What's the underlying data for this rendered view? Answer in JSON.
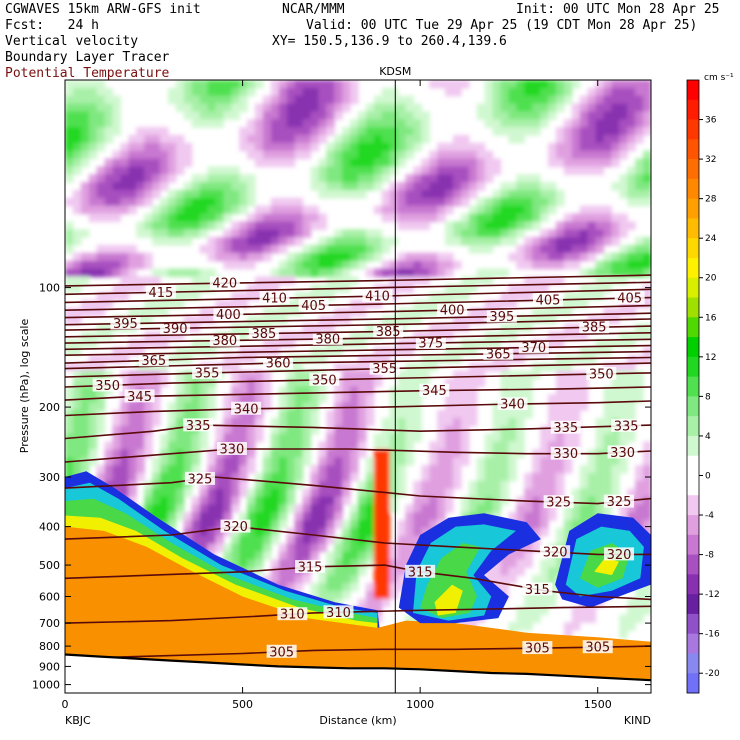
{
  "header": {
    "model": "CGWAVES 15km ARW-GFS init",
    "fcst": "Fcst:   24 h",
    "field1": "Vertical velocity",
    "field2": "Boundary Layer Tracer",
    "field3": "Potential Temperature",
    "org": "NCAR/MMM",
    "init": "Init: 00 UTC Mon 28 Apr 25",
    "valid": "Valid: 00 UTC Tue 29 Apr 25 (19 CDT Mon 28 Apr 25)",
    "xy": "XY= 150.5,136.9 to 260.4,139.6"
  },
  "colors": {
    "theta": "#5a0a0a",
    "tracer_outer": "#1a30e0",
    "tracer_mid": "#18c8d8",
    "tracer_green": "#48d848",
    "tracer_yellow": "#f0f000",
    "tracer_orange": "#f89000",
    "terrain": "#000000"
  },
  "chart_data": {
    "type": "cross-section",
    "xlabel": "Distance (km)",
    "ylabel": "Pressure (hPa), log scale",
    "xlim": [
      0,
      1650
    ],
    "ylim_hpa": [
      1050,
      30
    ],
    "x_ticks": [
      0,
      500,
      1000,
      1500
    ],
    "y_ticks": [
      100,
      200,
      300,
      400,
      500,
      600,
      700,
      800,
      900,
      1000
    ],
    "left_station": "KBJC",
    "right_station": "KIND",
    "marker_station": "KDSM",
    "marker_distance_km": 930,
    "colorbar": {
      "units": "cm s⁻¹",
      "labels": [
        "36",
        "32",
        "28",
        "24",
        "20",
        "16",
        "12",
        "8",
        "4",
        "0",
        "-4",
        "-8",
        "-12",
        "-16",
        "-20"
      ],
      "label_values": [
        36,
        32,
        28,
        24,
        20,
        16,
        12,
        8,
        4,
        0,
        -4,
        -8,
        -12,
        -16,
        -20
      ],
      "bins": [
        {
          "lo": 38,
          "hi": 40,
          "color": "#ff0000"
        },
        {
          "lo": 36,
          "hi": 38,
          "color": "#ff1c00"
        },
        {
          "lo": 34,
          "hi": 36,
          "color": "#ff3800"
        },
        {
          "lo": 32,
          "hi": 34,
          "color": "#ff5400"
        },
        {
          "lo": 30,
          "hi": 32,
          "color": "#ff6e00"
        },
        {
          "lo": 28,
          "hi": 30,
          "color": "#ff8800"
        },
        {
          "lo": 26,
          "hi": 28,
          "color": "#ffa000"
        },
        {
          "lo": 24,
          "hi": 26,
          "color": "#ffbc00"
        },
        {
          "lo": 22,
          "hi": 24,
          "color": "#ffd800"
        },
        {
          "lo": 20,
          "hi": 22,
          "color": "#fff000"
        },
        {
          "lo": 18,
          "hi": 20,
          "color": "#d8f000"
        },
        {
          "lo": 16,
          "hi": 18,
          "color": "#a0e000"
        },
        {
          "lo": 14,
          "hi": 16,
          "color": "#50d800"
        },
        {
          "lo": 12,
          "hi": 14,
          "color": "#00d000"
        },
        {
          "lo": 10,
          "hi": 12,
          "color": "#20d820"
        },
        {
          "lo": 8,
          "hi": 10,
          "color": "#50e050"
        },
        {
          "lo": 6,
          "hi": 8,
          "color": "#80e880"
        },
        {
          "lo": 4,
          "hi": 6,
          "color": "#a8f0a8"
        },
        {
          "lo": 2,
          "hi": 4,
          "color": "#d0f8d0"
        },
        {
          "lo": 0,
          "hi": 2,
          "color": "#ffffff"
        },
        {
          "lo": -2,
          "hi": 0,
          "color": "#ffffff"
        },
        {
          "lo": -4,
          "hi": -2,
          "color": "#f0c8f0"
        },
        {
          "lo": -6,
          "hi": -4,
          "color": "#e0a0e0"
        },
        {
          "lo": -8,
          "hi": -6,
          "color": "#c878d0"
        },
        {
          "lo": -10,
          "hi": -8,
          "color": "#a850c0"
        },
        {
          "lo": -12,
          "hi": -10,
          "color": "#8830b0"
        },
        {
          "lo": -14,
          "hi": -12,
          "color": "#6820a0"
        },
        {
          "lo": -16,
          "hi": -14,
          "color": "#9050c8"
        },
        {
          "lo": -18,
          "hi": -16,
          "color": "#a878e0"
        },
        {
          "lo": -20,
          "hi": -18,
          "color": "#8888f0"
        },
        {
          "lo": -22,
          "hi": -20,
          "color": "#7070f8"
        }
      ]
    },
    "theta_contours": [
      {
        "value": 305,
        "points": [
          [
            0,
            860
          ],
          [
            200,
            850
          ],
          [
            500,
            835
          ],
          [
            700,
            820
          ],
          [
            900,
            815
          ],
          [
            1100,
            815
          ],
          [
            1300,
            810
          ],
          [
            1500,
            805
          ],
          [
            1650,
            800
          ]
        ],
        "label_at": [
          [
            610,
            830
          ],
          [
            1330,
            815
          ],
          [
            1500,
            805
          ]
        ]
      },
      {
        "value": 310,
        "points": [
          [
            0,
            700
          ],
          [
            300,
            690
          ],
          [
            550,
            672
          ],
          [
            700,
            660
          ],
          [
            850,
            655
          ],
          [
            1000,
            650
          ],
          [
            1200,
            645
          ],
          [
            1400,
            640
          ],
          [
            1650,
            635
          ]
        ],
        "label_at": [
          [
            640,
            670
          ],
          [
            770,
            660
          ]
        ]
      },
      {
        "value": 315,
        "points": [
          [
            0,
            540
          ],
          [
            250,
            530
          ],
          [
            500,
            520
          ],
          [
            700,
            505
          ],
          [
            900,
            500
          ],
          [
            1000,
            520
          ],
          [
            1150,
            540
          ],
          [
            1350,
            580
          ],
          [
            1500,
            600
          ],
          [
            1650,
            610
          ]
        ],
        "label_at": [
          [
            690,
            505
          ],
          [
            1000,
            520
          ],
          [
            1330,
            580
          ]
        ]
      },
      {
        "value": 320,
        "points": [
          [
            0,
            430
          ],
          [
            300,
            420
          ],
          [
            480,
            400
          ],
          [
            700,
            420
          ],
          [
            900,
            440
          ],
          [
            1100,
            450
          ],
          [
            1300,
            460
          ],
          [
            1500,
            470
          ],
          [
            1650,
            470
          ]
        ],
        "label_at": [
          [
            480,
            400
          ],
          [
            1380,
            460
          ],
          [
            1560,
            460
          ]
        ]
      },
      {
        "value": 325,
        "points": [
          [
            0,
            320
          ],
          [
            300,
            310
          ],
          [
            420,
            300
          ],
          [
            700,
            315
          ],
          [
            1000,
            335
          ],
          [
            1300,
            345
          ],
          [
            1500,
            350
          ],
          [
            1650,
            340
          ]
        ],
        "label_at": [
          [
            380,
            300
          ],
          [
            1390,
            345
          ],
          [
            1560,
            335
          ]
        ]
      },
      {
        "value": 330,
        "points": [
          [
            0,
            275
          ],
          [
            300,
            262
          ],
          [
            470,
            255
          ],
          [
            800,
            255
          ],
          [
            1100,
            260
          ],
          [
            1300,
            262
          ],
          [
            1500,
            262
          ],
          [
            1650,
            258
          ]
        ],
        "label_at": [
          [
            470,
            255
          ],
          [
            1410,
            262
          ],
          [
            1570,
            258
          ]
        ]
      },
      {
        "value": 335,
        "points": [
          [
            0,
            240
          ],
          [
            250,
            230
          ],
          [
            380,
            222
          ],
          [
            700,
            225
          ],
          [
            1000,
            230
          ],
          [
            1300,
            227
          ],
          [
            1650,
            222
          ]
        ],
        "label_at": [
          [
            375,
            222
          ],
          [
            1410,
            225
          ],
          [
            1580,
            222
          ]
        ]
      },
      {
        "value": 340,
        "points": [
          [
            0,
            210
          ],
          [
            250,
            205
          ],
          [
            500,
            202
          ],
          [
            900,
            200
          ],
          [
            1200,
            197
          ],
          [
            1500,
            195
          ],
          [
            1650,
            193
          ]
        ],
        "label_at": [
          [
            510,
            202
          ],
          [
            1260,
            198
          ]
        ]
      },
      {
        "value": 345,
        "points": [
          [
            0,
            192
          ],
          [
            200,
            188
          ],
          [
            600,
            185
          ],
          [
            1000,
            182
          ],
          [
            1400,
            180
          ],
          [
            1650,
            178
          ]
        ],
        "label_at": [
          [
            210,
            188
          ],
          [
            1040,
            182
          ]
        ]
      },
      {
        "value": 350,
        "points": [
          [
            0,
            178
          ],
          [
            300,
            174
          ],
          [
            700,
            171
          ],
          [
            1100,
            168
          ],
          [
            1650,
            164
          ]
        ],
        "label_at": [
          [
            120,
            178
          ],
          [
            730,
            171
          ],
          [
            1510,
            165
          ]
        ]
      },
      {
        "value": 355,
        "points": [
          [
            0,
            168
          ],
          [
            400,
            164
          ],
          [
            900,
            160
          ],
          [
            1650,
            155
          ]
        ],
        "label_at": [
          [
            400,
            164
          ],
          [
            900,
            160
          ]
        ]
      },
      {
        "value": 360,
        "points": [
          [
            0,
            160
          ],
          [
            600,
            155
          ],
          [
            1650,
            150
          ]
        ],
        "label_at": [
          [
            600,
            156
          ]
        ]
      },
      {
        "value": 365,
        "points": [
          [
            0,
            155
          ],
          [
            500,
            150
          ],
          [
            1650,
            145
          ]
        ],
        "label_at": [
          [
            250,
            153
          ],
          [
            1220,
            147
          ]
        ]
      },
      {
        "value": 370,
        "points": [
          [
            0,
            148
          ],
          [
            800,
            144
          ],
          [
            1650,
            140
          ]
        ],
        "label_at": [
          [
            1320,
            142
          ]
        ]
      },
      {
        "value": 375,
        "points": [
          [
            0,
            143
          ],
          [
            800,
            139
          ],
          [
            1650,
            135
          ]
        ],
        "label_at": [
          [
            1030,
            139
          ]
        ]
      },
      {
        "value": 380,
        "points": [
          [
            0,
            138
          ],
          [
            900,
            134
          ],
          [
            1650,
            130
          ]
        ],
        "label_at": [
          [
            450,
            136
          ],
          [
            740,
            135
          ]
        ]
      },
      {
        "value": 385,
        "points": [
          [
            0,
            133
          ],
          [
            900,
            129
          ],
          [
            1650,
            125
          ]
        ],
        "label_at": [
          [
            560,
            131
          ],
          [
            910,
            129
          ],
          [
            1490,
            126
          ]
        ]
      },
      {
        "value": 390,
        "points": [
          [
            0,
            128
          ],
          [
            900,
            124
          ],
          [
            1650,
            120
          ]
        ],
        "label_at": [
          [
            310,
            127
          ]
        ]
      },
      {
        "value": 395,
        "points": [
          [
            0,
            124
          ],
          [
            900,
            120
          ],
          [
            1650,
            116
          ]
        ],
        "label_at": [
          [
            170,
            123
          ],
          [
            1230,
            118
          ]
        ]
      },
      {
        "value": 400,
        "points": [
          [
            0,
            119
          ],
          [
            900,
            115
          ],
          [
            1650,
            111
          ]
        ],
        "label_at": [
          [
            460,
            117
          ],
          [
            1090,
            115
          ]
        ]
      },
      {
        "value": 405,
        "points": [
          [
            0,
            114
          ],
          [
            900,
            110
          ],
          [
            1650,
            106
          ]
        ],
        "label_at": [
          [
            700,
            112
          ],
          [
            1360,
            108
          ],
          [
            1590,
            106
          ]
        ]
      },
      {
        "value": 410,
        "points": [
          [
            0,
            109
          ],
          [
            900,
            105
          ],
          [
            1650,
            101
          ]
        ],
        "label_at": [
          [
            590,
            107
          ],
          [
            880,
            105
          ]
        ]
      },
      {
        "value": 415,
        "points": [
          [
            0,
            104
          ],
          [
            900,
            100
          ],
          [
            1650,
            97
          ]
        ],
        "label_at": [
          [
            270,
            103
          ]
        ]
      },
      {
        "value": 420,
        "points": [
          [
            0,
            99
          ],
          [
            900,
            96
          ],
          [
            1650,
            93
          ]
        ],
        "label_at": [
          [
            450,
            98
          ]
        ]
      }
    ]
  }
}
